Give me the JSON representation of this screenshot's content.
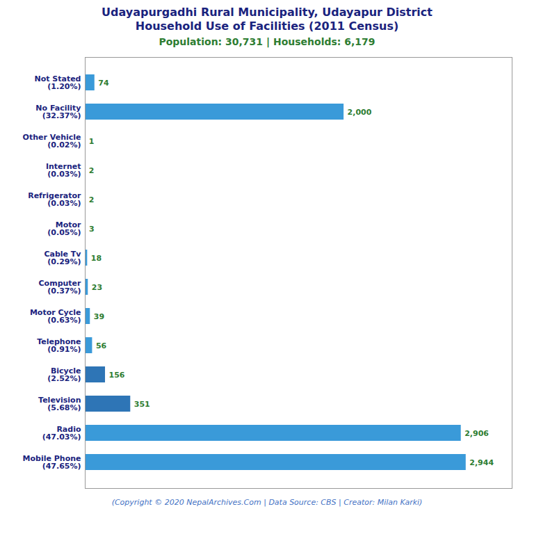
{
  "chart_data": {
    "type": "bar",
    "orientation": "horizontal",
    "title": "Udayapurgadhi Rural Municipality, Udayapur District\nHousehold Use of Facilities (2011 Census)",
    "subtitle": "Population: 30,731 | Households: 6,179",
    "annotations": [
      "(Copyright © 2020 NepalArchives.Com | Data Source: CBS | Creator: Milan Karki)"
    ],
    "categories": [
      "Not Stated\n(1.20%)",
      "No Facility\n(32.37%)",
      "Other Vehicle\n(0.02%)",
      "Internet\n(0.03%)",
      "Refrigerator\n(0.03%)",
      "Motor\n(0.05%)",
      "Cable Tv\n(0.29%)",
      "Computer\n(0.37%)",
      "Motor Cycle\n(0.63%)",
      "Telephone\n(0.91%)",
      "Bicycle\n(2.52%)",
      "Television\n(5.68%)",
      "Radio\n(47.03%)",
      "Mobile Phone\n(47.65%)"
    ],
    "values": [
      74,
      2000,
      1,
      2,
      2,
      3,
      18,
      23,
      39,
      56,
      156,
      351,
      2906,
      2944
    ],
    "value_labels": [
      "74",
      "2,000",
      "1",
      "2",
      "2",
      "3",
      "18",
      "23",
      "39",
      "56",
      "156",
      "351",
      "2,906",
      "2,944"
    ],
    "colors": [
      "#3a9ad9",
      "#3a9ad9",
      "#3a9ad9",
      "#3a9ad9",
      "#3a9ad9",
      "#3a9ad9",
      "#3a9ad9",
      "#3a9ad9",
      "#3a9ad9",
      "#3a9ad9",
      "#2e75b6",
      "#2e75b6",
      "#3a9ad9",
      "#3a9ad9"
    ],
    "xlim": [
      0,
      3300
    ],
    "data_labels": true,
    "tick_labels": "y",
    "grid": false
  }
}
